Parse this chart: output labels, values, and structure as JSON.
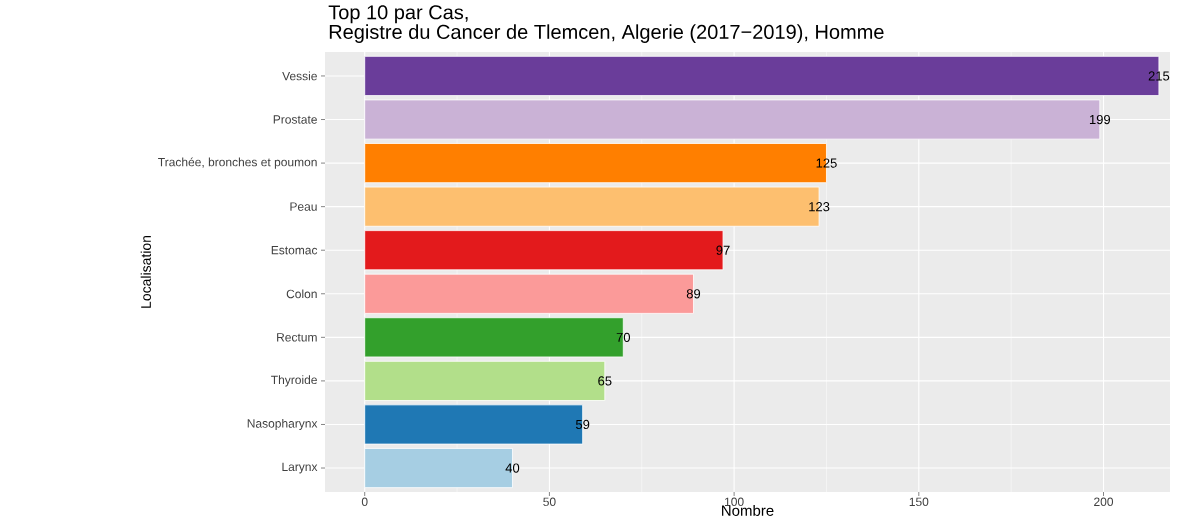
{
  "chart_data": {
    "type": "bar",
    "orientation": "horizontal",
    "title": "Top 10 par Cas,",
    "subtitle": "Registre du Cancer de Tlemcen, Algerie  (2017−2019), Homme",
    "xlabel": "Nombre",
    "ylabel": "Localisation",
    "categories": [
      "Vessie",
      "Prostate",
      "Trachée, bronches et poumon",
      "Peau",
      "Estomac",
      "Colon",
      "Rectum",
      "Thyroide",
      "Nasopharynx",
      "Larynx"
    ],
    "values": [
      215,
      199,
      125,
      123,
      97,
      89,
      70,
      65,
      59,
      40
    ],
    "colors": [
      "#6a3d9a",
      "#cab2d6",
      "#ff7f00",
      "#fdbf6f",
      "#e31a1c",
      "#fb9a99",
      "#33a02c",
      "#b2df8a",
      "#1f78b4",
      "#a6cee3"
    ],
    "xlim": [
      -10.75,
      218
    ],
    "xticks": [
      0,
      50,
      100,
      150,
      200
    ],
    "grid": true,
    "data_labels": true
  }
}
